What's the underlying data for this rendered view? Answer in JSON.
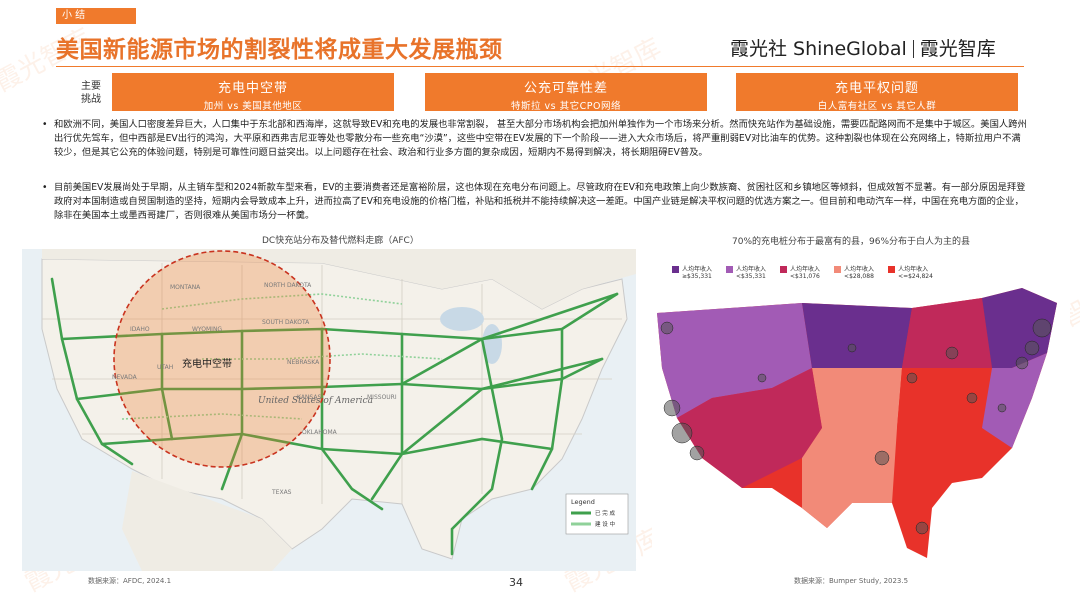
{
  "section_tag": "小 结",
  "title": "美国新能源市场的割裂性将成重大发展瓶颈",
  "brand": {
    "part1": "霞光社 ShineGlobal",
    "part2": "霞光智库"
  },
  "challenge_label": "主要\n挑战",
  "challenges": [
    {
      "head": "充电中空带",
      "sub": "加州 vs 美国其他地区"
    },
    {
      "head": "公充可靠性差",
      "sub": "特斯拉 vs 其它CPO网络"
    },
    {
      "head": "充电平权问题",
      "sub": "白人富有社区 vs 其它人群"
    }
  ],
  "bullets": [
    "和欧洲不同，美国人口密度差异巨大，人口集中于东北部和西海岸，这就导致EV和充电的发展也非常割裂， 甚至大部分市场机构会把加州单独作为一个市场来分析。然而快充站作为基础设施，需要匹配路网而不是集中于城区。美国人跨州出行优先驾车，但中西部是EV出行的鸿沟，大平原和西弗吉尼亚等处也零散分布一些充电“沙漠”，这些中空带在EV发展的下一个阶段——进入大众市场后，将严重削弱EV对比油车的优势。这种割裂也体现在公充网络上，特斯拉用户不满较少，但是其它公充的体验问题，特别是可靠性问题日益突出。以上问题存在社会、政治和行业多方面的复杂成因，短期内不易得到解决，将长期阻碍EV普及。",
    "目前美国EV发展尚处于早期，从主销车型和2024新款车型来看，EV的主要消费者还是富裕阶层，这也体现在充电分布问题上。尽管政府在EV和充电政策上向少数族裔、贫困社区和乡镇地区等倾斜，但成效暂不显著。有一部分原因是拜登政府对本国制造或自贸国制造的坚持，短期内会导致成本上升，进而拉高了EV和充电设施的价格门槛，补贴和抵税并不能持续解决这一差距。中国产业链是解决平权问题的优选方案之一。但目前和电动汽车一样，中国在充电方面的企业，除非在美国本土或墨西哥建厂，否则很难从美国市场分一杯羹。"
  ],
  "map1": {
    "title": "DC快充站分布及替代燃料走廊（AFC）",
    "hollow_label": "充电中空带",
    "country_label": "United States of America",
    "state_labels": [
      "MONTANA",
      "NORTH DAKOTA",
      "SOUTH DAKOTA",
      "WYOMING",
      "IDAHO",
      "NEBRASKA",
      "KANSAS",
      "TEXAS",
      "NEVADA",
      "OKLAHOMA",
      "MISSOURI",
      "UTAH"
    ],
    "legend_title": "Legend",
    "legend_items": [
      "已 完 成",
      "建 设 中"
    ],
    "source": "数据来源：AFDC, 2024.1"
  },
  "map2": {
    "title": "70%的充电桩分布于最富有的县，96%分布于白人为主的县",
    "legend": [
      {
        "label": "人均年收入\n≥$35,331",
        "color": "#6a2f8e"
      },
      {
        "label": "人均年收入\n<$35,331",
        "color": "#a25bb5"
      },
      {
        "label": "人均年收入\n<$31,076",
        "color": "#c0295a"
      },
      {
        "label": "人均年收入\n<$28,088",
        "color": "#f28a78"
      },
      {
        "label": "人均年收入\n<=$24,824",
        "color": "#e8322a"
      }
    ],
    "source": "数据来源：Bumper Study, 2023.5"
  },
  "page_number": "34",
  "watermark": "霞光智库"
}
